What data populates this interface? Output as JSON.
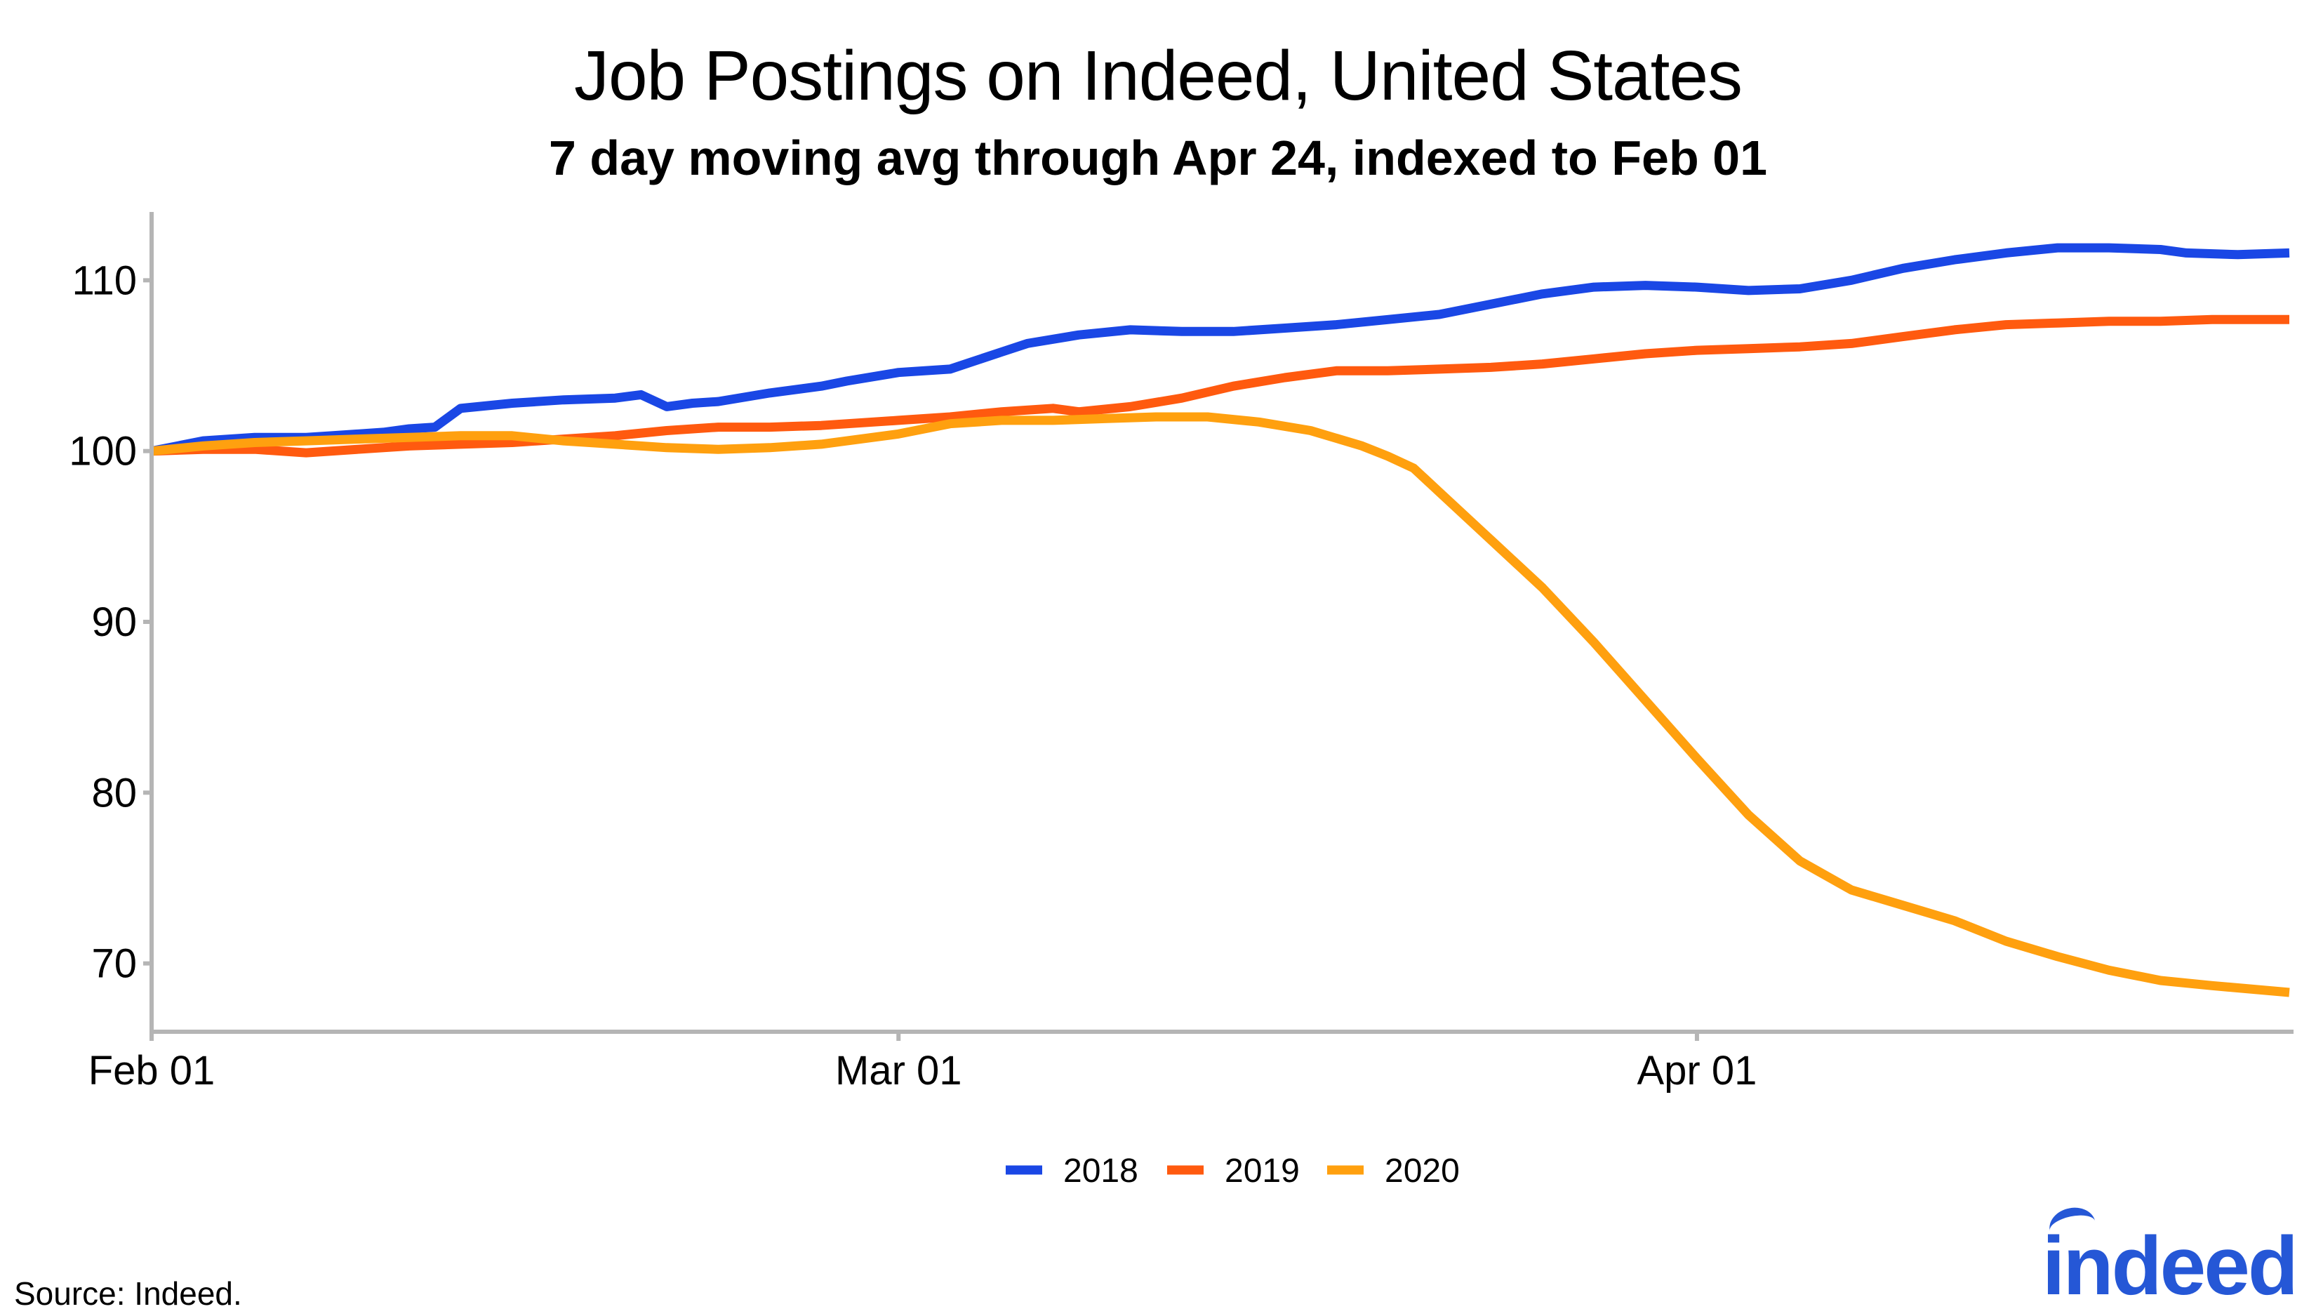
{
  "colors": {
    "s2018": "#1a47e5",
    "s2019": "#ff5a0f",
    "s2020": "#ffa00f",
    "axis": "#b5b5b5",
    "brand": "#2557d6"
  },
  "source": "Source: Indeed.",
  "logo_text": "indeed",
  "chart_data": {
    "type": "line",
    "title": "Job Postings on Indeed, United States",
    "subtitle": "7 day moving avg through Apr 24, indexed to Feb 01",
    "xlabel": "",
    "ylabel": "",
    "x_ticks": [
      {
        "label": "Feb 01",
        "day": 1
      },
      {
        "label": "Mar 01",
        "day": 30
      },
      {
        "label": "Apr 01",
        "day": 61
      }
    ],
    "y_ticks": [
      70,
      80,
      90,
      100,
      110
    ],
    "xlim": [
      "Feb 01",
      "Apr 24"
    ],
    "ylim": [
      66,
      114
    ],
    "grid": false,
    "legend_position": "bottom",
    "series": [
      {
        "name": "2018",
        "color": "#1a47e5",
        "points": [
          [
            "Feb 01",
            100.0
          ],
          [
            "Feb 03",
            100.6
          ],
          [
            "Feb 05",
            100.8
          ],
          [
            "Feb 07",
            100.8
          ],
          [
            "Feb 08",
            100.9
          ],
          [
            "Feb 10",
            101.1
          ],
          [
            "Feb 11",
            101.3
          ],
          [
            "Feb 12",
            101.4
          ],
          [
            "Feb 13",
            102.5
          ],
          [
            "Feb 15",
            102.8
          ],
          [
            "Feb 17",
            103.0
          ],
          [
            "Feb 19",
            103.1
          ],
          [
            "Feb 20",
            103.3
          ],
          [
            "Feb 21",
            102.6
          ],
          [
            "Feb 22",
            102.8
          ],
          [
            "Feb 23",
            102.9
          ],
          [
            "Feb 25",
            103.4
          ],
          [
            "Feb 27",
            103.8
          ],
          [
            "Feb 28",
            104.1
          ],
          [
            "Mar 01",
            104.6
          ],
          [
            "Mar 03",
            104.8
          ],
          [
            "Mar 05",
            105.8
          ],
          [
            "Mar 06",
            106.3
          ],
          [
            "Mar 08",
            106.8
          ],
          [
            "Mar 10",
            107.1
          ],
          [
            "Mar 12",
            107.0
          ],
          [
            "Mar 14",
            107.0
          ],
          [
            "Mar 16",
            107.2
          ],
          [
            "Mar 18",
            107.4
          ],
          [
            "Mar 20",
            107.7
          ],
          [
            "Mar 22",
            108.0
          ],
          [
            "Mar 24",
            108.6
          ],
          [
            "Mar 26",
            109.2
          ],
          [
            "Mar 28",
            109.6
          ],
          [
            "Mar 30",
            109.7
          ],
          [
            "Apr 01",
            109.6
          ],
          [
            "Apr 03",
            109.4
          ],
          [
            "Apr 05",
            109.5
          ],
          [
            "Apr 07",
            110.0
          ],
          [
            "Apr 09",
            110.7
          ],
          [
            "Apr 11",
            111.2
          ],
          [
            "Apr 13",
            111.6
          ],
          [
            "Apr 15",
            111.9
          ],
          [
            "Apr 17",
            111.9
          ],
          [
            "Apr 19",
            111.8
          ],
          [
            "Apr 20",
            111.6
          ],
          [
            "Apr 22",
            111.5
          ],
          [
            "Apr 24",
            111.6
          ]
        ]
      },
      {
        "name": "2019",
        "color": "#ff5a0f",
        "points": [
          [
            "Feb 01",
            100.0
          ],
          [
            "Feb 03",
            100.1
          ],
          [
            "Feb 05",
            100.1
          ],
          [
            "Feb 07",
            99.9
          ],
          [
            "Feb 09",
            100.1
          ],
          [
            "Feb 11",
            100.3
          ],
          [
            "Feb 13",
            100.4
          ],
          [
            "Feb 15",
            100.5
          ],
          [
            "Feb 17",
            100.7
          ],
          [
            "Feb 19",
            100.9
          ],
          [
            "Feb 21",
            101.2
          ],
          [
            "Feb 23",
            101.4
          ],
          [
            "Feb 25",
            101.4
          ],
          [
            "Feb 27",
            101.5
          ],
          [
            "Mar 01",
            101.8
          ],
          [
            "Mar 03",
            102.0
          ],
          [
            "Mar 05",
            102.3
          ],
          [
            "Mar 07",
            102.5
          ],
          [
            "Mar 08",
            102.3
          ],
          [
            "Mar 10",
            102.6
          ],
          [
            "Mar 12",
            103.1
          ],
          [
            "Mar 14",
            103.8
          ],
          [
            "Mar 16",
            104.3
          ],
          [
            "Mar 18",
            104.7
          ],
          [
            "Mar 20",
            104.7
          ],
          [
            "Mar 22",
            104.8
          ],
          [
            "Mar 24",
            104.9
          ],
          [
            "Mar 26",
            105.1
          ],
          [
            "Mar 28",
            105.4
          ],
          [
            "Mar 30",
            105.7
          ],
          [
            "Apr 01",
            105.9
          ],
          [
            "Apr 03",
            106.0
          ],
          [
            "Apr 05",
            106.1
          ],
          [
            "Apr 07",
            106.3
          ],
          [
            "Apr 09",
            106.7
          ],
          [
            "Apr 11",
            107.1
          ],
          [
            "Apr 13",
            107.4
          ],
          [
            "Apr 15",
            107.5
          ],
          [
            "Apr 17",
            107.6
          ],
          [
            "Apr 19",
            107.6
          ],
          [
            "Apr 21",
            107.7
          ],
          [
            "Apr 24",
            107.7
          ]
        ]
      },
      {
        "name": "2020",
        "color": "#ffa00f",
        "points": [
          [
            "Feb 01",
            100.0
          ],
          [
            "Feb 03",
            100.3
          ],
          [
            "Feb 05",
            100.5
          ],
          [
            "Feb 07",
            100.6
          ],
          [
            "Feb 09",
            100.7
          ],
          [
            "Feb 11",
            100.8
          ],
          [
            "Feb 13",
            100.9
          ],
          [
            "Feb 15",
            100.9
          ],
          [
            "Feb 17",
            100.6
          ],
          [
            "Feb 19",
            100.4
          ],
          [
            "Feb 21",
            100.2
          ],
          [
            "Feb 23",
            100.1
          ],
          [
            "Feb 25",
            100.2
          ],
          [
            "Feb 27",
            100.4
          ],
          [
            "Mar 01",
            101.0
          ],
          [
            "Mar 03",
            101.6
          ],
          [
            "Mar 05",
            101.8
          ],
          [
            "Mar 07",
            101.8
          ],
          [
            "Mar 09",
            101.9
          ],
          [
            "Mar 11",
            102.0
          ],
          [
            "Mar 13",
            102.0
          ],
          [
            "Mar 15",
            101.7
          ],
          [
            "Mar 17",
            101.2
          ],
          [
            "Mar 19",
            100.3
          ],
          [
            "Mar 20",
            99.7
          ],
          [
            "Mar 21",
            99.0
          ],
          [
            "Mar 22",
            97.6
          ],
          [
            "Mar 24",
            94.8
          ],
          [
            "Mar 26",
            92.0
          ],
          [
            "Mar 28",
            88.8
          ],
          [
            "Mar 30",
            85.4
          ],
          [
            "Apr 01",
            82.0
          ],
          [
            "Apr 03",
            78.7
          ],
          [
            "Apr 05",
            76.0
          ],
          [
            "Apr 07",
            74.3
          ],
          [
            "Apr 09",
            73.4
          ],
          [
            "Apr 11",
            72.5
          ],
          [
            "Apr 13",
            71.3
          ],
          [
            "Apr 15",
            70.4
          ],
          [
            "Apr 17",
            69.6
          ],
          [
            "Apr 19",
            69.0
          ],
          [
            "Apr 21",
            68.7
          ],
          [
            "Apr 24",
            68.3
          ]
        ]
      }
    ]
  }
}
